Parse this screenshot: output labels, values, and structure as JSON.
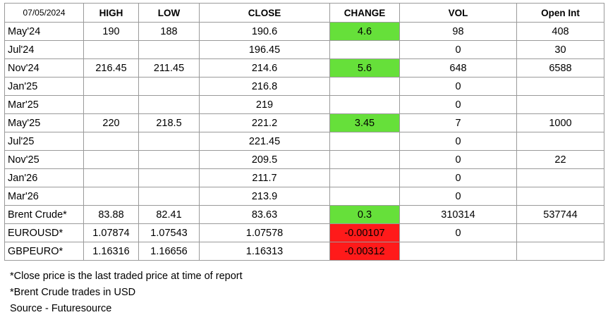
{
  "header": {
    "date": "07/05/2024",
    "high": "HIGH",
    "low": "LOW",
    "close": "CLOSE",
    "change": "CHANGE",
    "vol": "VOL",
    "open_int": "Open Int"
  },
  "colors": {
    "positive_change": "#66e03a",
    "negative_change": "#ff1a1a",
    "border": "#9a9a9a"
  },
  "rows": [
    {
      "contract": "May'24",
      "high": "190",
      "low": "188",
      "close": "190.6",
      "change": "4.6",
      "change_dir": "up",
      "vol": "98",
      "open_int": "408"
    },
    {
      "contract": "Jul'24",
      "high": "",
      "low": "",
      "close": "196.45",
      "change": "",
      "change_dir": "",
      "vol": "0",
      "open_int": "30"
    },
    {
      "contract": "Nov'24",
      "high": "216.45",
      "low": "211.45",
      "close": "214.6",
      "change": "5.6",
      "change_dir": "up",
      "vol": "648",
      "open_int": "6588"
    },
    {
      "contract": "Jan'25",
      "high": "",
      "low": "",
      "close": "216.8",
      "change": "",
      "change_dir": "",
      "vol": "0",
      "open_int": ""
    },
    {
      "contract": "Mar'25",
      "high": "",
      "low": "",
      "close": "219",
      "change": "",
      "change_dir": "",
      "vol": "0",
      "open_int": ""
    },
    {
      "contract": "May'25",
      "high": "220",
      "low": "218.5",
      "close": "221.2",
      "change": "3.45",
      "change_dir": "up",
      "vol": "7",
      "open_int": "1000"
    },
    {
      "contract": "Jul'25",
      "high": "",
      "low": "",
      "close": "221.45",
      "change": "",
      "change_dir": "",
      "vol": "0",
      "open_int": ""
    },
    {
      "contract": "Nov'25",
      "high": "",
      "low": "",
      "close": "209.5",
      "change": "",
      "change_dir": "",
      "vol": "0",
      "open_int": "22"
    },
    {
      "contract": "Jan'26",
      "high": "",
      "low": "",
      "close": "211.7",
      "change": "",
      "change_dir": "",
      "vol": "0",
      "open_int": ""
    },
    {
      "contract": "Mar'26",
      "high": "",
      "low": "",
      "close": "213.9",
      "change": "",
      "change_dir": "",
      "vol": "0",
      "open_int": ""
    },
    {
      "contract": "Brent Crude*",
      "high": "83.88",
      "low": "82.41",
      "close": "83.63",
      "change": "0.3",
      "change_dir": "up",
      "vol": "310314",
      "open_int": "537744"
    },
    {
      "contract": "EUROUSD*",
      "high": "1.07874",
      "low": "1.07543",
      "close": "1.07578",
      "change": "-0.00107",
      "change_dir": "down",
      "vol": "0",
      "open_int": ""
    },
    {
      "contract": "GBPEURO*",
      "high": "1.16316",
      "low": "1.16656",
      "close": "1.16313",
      "change": "-0.00312",
      "change_dir": "down",
      "vol": "",
      "open_int": ""
    }
  ],
  "notes": {
    "close_note": "*Close price is the last traded price at time of report",
    "brent_note": "*Brent Crude trades in USD",
    "source": "Source -  Futuresource"
  }
}
